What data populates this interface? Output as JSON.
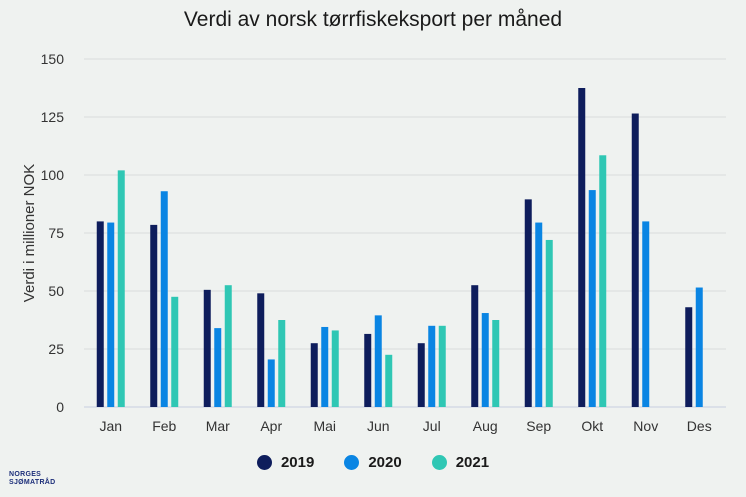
{
  "title": "Verdi av norsk tørrfiskeksport per måned",
  "logo": {
    "line1": "NORGES",
    "line2": "SJØMATRÅD"
  },
  "chart_data": {
    "type": "bar",
    "title": "Verdi av norsk tørrfiskeksport per måned",
    "ylabel": "Verdi i millioner NOK",
    "xlabel": "",
    "ylim": [
      0,
      150
    ],
    "yticks": [
      0,
      25,
      50,
      75,
      100,
      125,
      150
    ],
    "grid": true,
    "legend_position": "bottom",
    "categories": [
      "Jan",
      "Feb",
      "Mar",
      "Apr",
      "Mai",
      "Jun",
      "Jul",
      "Aug",
      "Sep",
      "Okt",
      "Nov",
      "Des"
    ],
    "series": [
      {
        "name": "2019",
        "color": "#0e1d5c",
        "values": [
          80,
          78.5,
          50.5,
          49,
          27.5,
          31.5,
          27.5,
          52.5,
          89.5,
          137.5,
          126.5,
          43
        ]
      },
      {
        "name": "2020",
        "color": "#0a85e3",
        "values": [
          79.5,
          93,
          34,
          20.5,
          34.5,
          39.5,
          35,
          40.5,
          79.5,
          93.5,
          80,
          51.5
        ]
      },
      {
        "name": "2021",
        "color": "#2fc7b4",
        "values": [
          102,
          47.5,
          52.5,
          37.5,
          33,
          22.5,
          35,
          37.5,
          72,
          108.5,
          null,
          null
        ]
      }
    ]
  }
}
